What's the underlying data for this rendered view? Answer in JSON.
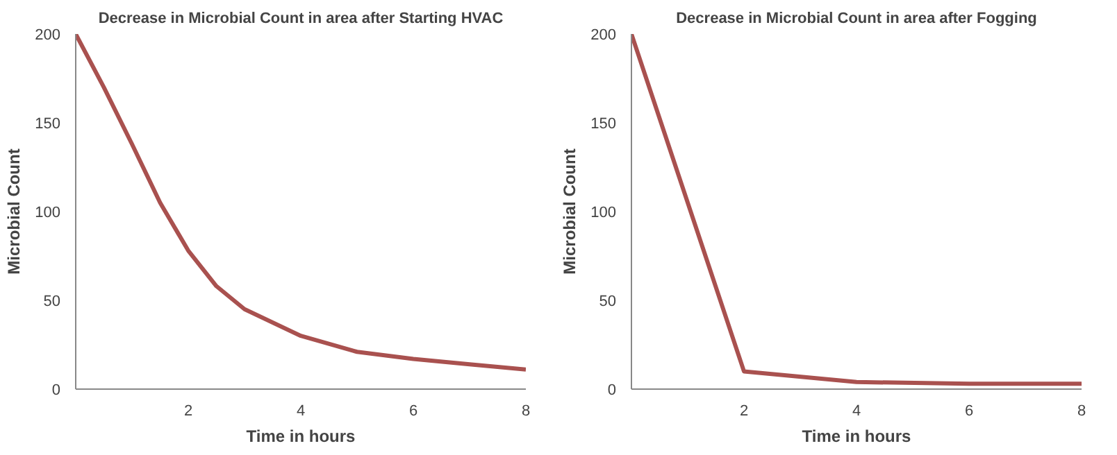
{
  "chart_data": [
    {
      "type": "line",
      "title": "Decrease in Microbial Count in area after Starting HVAC",
      "xlabel": "Time in hours",
      "ylabel": "Microbial Count",
      "x": [
        0,
        0.5,
        1,
        1.5,
        2,
        2.5,
        3,
        4,
        5,
        6,
        7,
        8
      ],
      "series": [
        {
          "color": "#a9514f",
          "values": [
            200,
            170,
            138,
            105,
            78,
            58,
            45,
            30,
            21,
            17,
            14,
            11
          ]
        }
      ],
      "xlim": [
        0,
        8
      ],
      "ylim": [
        0,
        200
      ],
      "xticks": [
        2,
        4,
        6,
        8
      ],
      "yticks": [
        0,
        50,
        100,
        150,
        200
      ]
    },
    {
      "type": "line",
      "title": "Decrease in Microbial Count in area after Fogging",
      "xlabel": "Time in hours",
      "ylabel": "Microbial Count",
      "x": [
        0,
        2,
        4,
        6,
        8
      ],
      "series": [
        {
          "color": "#a9514f",
          "values": [
            200,
            10,
            4,
            3,
            3
          ]
        }
      ],
      "xlim": [
        0,
        8
      ],
      "ylim": [
        0,
        200
      ],
      "xticks": [
        2,
        4,
        6,
        8
      ],
      "yticks": [
        0,
        50,
        100,
        150,
        200
      ]
    }
  ]
}
